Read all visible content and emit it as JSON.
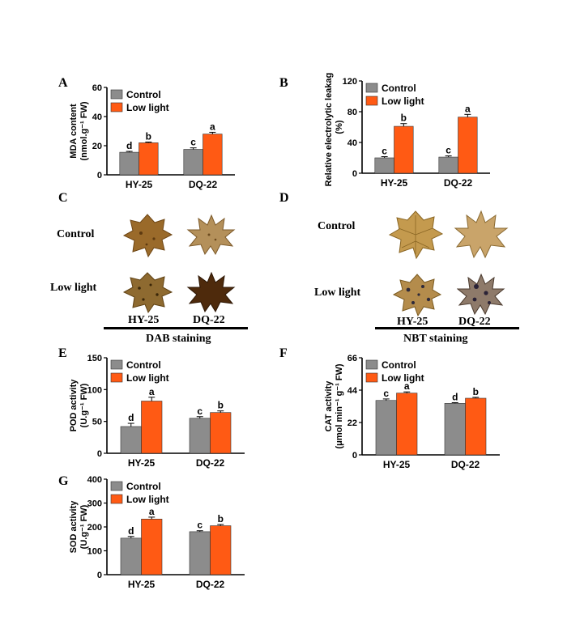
{
  "colors": {
    "control": "#8c8c8c",
    "low_light": "#ff5a14"
  },
  "panels": {
    "A": "A",
    "B": "B",
    "C": "C",
    "D": "D",
    "E": "E",
    "F": "F",
    "G": "G"
  },
  "staining": {
    "dab": {
      "rows": [
        "Control",
        "Low light"
      ],
      "cols": [
        "HY-25",
        "DQ-22"
      ],
      "title": "DAB staining",
      "leaves": [
        "light-brown-leaf",
        "pale-brown-leaf",
        "spotted-brown-leaf",
        "dark-brown-leaf"
      ]
    },
    "nbt": {
      "rows": [
        "Control",
        "Low light"
      ],
      "cols": [
        "HY-25",
        "DQ-22"
      ],
      "title": "NBT staining",
      "leaves": [
        "tan-leaf",
        "pale-tan-leaf",
        "spotted-tan-leaf",
        "spotted-dark-leaf"
      ]
    }
  },
  "chart_data": [
    {
      "id": "A",
      "type": "bar",
      "categories": [
        "HY-25",
        "DQ-22"
      ],
      "series": [
        {
          "name": "Control",
          "values": [
            15.5,
            17.5
          ],
          "errors": [
            0.6,
            1.0
          ],
          "letters": [
            "d",
            "c"
          ]
        },
        {
          "name": "Low light",
          "values": [
            22,
            28
          ],
          "errors": [
            0.5,
            1.2
          ],
          "letters": [
            "b",
            "a"
          ]
        }
      ],
      "ylabel_lines": [
        "MDA content",
        "(nmol.g⁻¹ FW)"
      ],
      "ylim": [
        0,
        60
      ],
      "yticks": [
        "0",
        "20",
        "40",
        "60"
      ],
      "tickvals": [
        0,
        20,
        40,
        60
      ]
    },
    {
      "id": "B",
      "type": "bar",
      "categories": [
        "HY-25",
        "DQ-22"
      ],
      "series": [
        {
          "name": "Control",
          "values": [
            20,
            21
          ],
          "errors": [
            1.5,
            1.5
          ],
          "letters": [
            "c",
            "c"
          ]
        },
        {
          "name": "Low light",
          "values": [
            61,
            73
          ],
          "errors": [
            3.5,
            3.5
          ],
          "letters": [
            "b",
            "a"
          ]
        }
      ],
      "ylabel_lines": [
        "Relative electrolytic leakage",
        "(%)"
      ],
      "ylim": [
        0,
        120
      ],
      "yticks": [
        "0",
        "40",
        "80",
        "120"
      ],
      "tickvals": [
        0,
        40,
        80,
        120
      ]
    },
    {
      "id": "E",
      "type": "bar",
      "categories": [
        "HY-25",
        "DQ-22"
      ],
      "series": [
        {
          "name": "Control",
          "values": [
            42,
            55
          ],
          "errors": [
            5,
            2.5
          ],
          "letters": [
            "d",
            "c"
          ]
        },
        {
          "name": "Low light",
          "values": [
            82,
            64
          ],
          "errors": [
            6,
            2.5
          ],
          "letters": [
            "a",
            "b"
          ]
        }
      ],
      "ylabel_lines": [
        "POD activity",
        "(U.g⁻¹ FW)"
      ],
      "ylim": [
        0,
        150
      ],
      "yticks": [
        "0",
        "50",
        "100",
        "150"
      ],
      "tickvals": [
        0,
        50,
        100,
        150
      ]
    },
    {
      "id": "F",
      "type": "bar",
      "categories": [
        "HY-25",
        "DQ-22"
      ],
      "series": [
        {
          "name": "Control",
          "values": [
            37,
            35
          ],
          "errors": [
            1.0,
            0.5
          ],
          "letters": [
            "c",
            "d"
          ]
        },
        {
          "name": "Low light",
          "values": [
            42,
            38.5
          ],
          "errors": [
            0.8,
            0.6
          ],
          "letters": [
            "a",
            "b"
          ]
        }
      ],
      "ylabel_lines": [
        "CAT activity",
        "(μmol min⁻¹ g⁻¹ FW)"
      ],
      "ylim": [
        0,
        66
      ],
      "yticks": [
        "0",
        "22",
        "44",
        "66"
      ],
      "tickvals": [
        0,
        22,
        44,
        66
      ]
    },
    {
      "id": "G",
      "type": "bar",
      "categories": [
        "HY-25",
        "DQ-22"
      ],
      "series": [
        {
          "name": "Control",
          "values": [
            153,
            180
          ],
          "errors": [
            7,
            4
          ],
          "letters": [
            "d",
            "c"
          ]
        },
        {
          "name": "Low light",
          "values": [
            233,
            205
          ],
          "errors": [
            8,
            5
          ],
          "letters": [
            "a",
            "b"
          ]
        }
      ],
      "ylabel_lines": [
        "SOD activity",
        "(U.g⁻¹ FW)"
      ],
      "ylim": [
        0,
        400
      ],
      "yticks": [
        "0",
        "100",
        "200",
        "300",
        "400"
      ],
      "tickvals": [
        0,
        100,
        200,
        300,
        400
      ]
    }
  ]
}
